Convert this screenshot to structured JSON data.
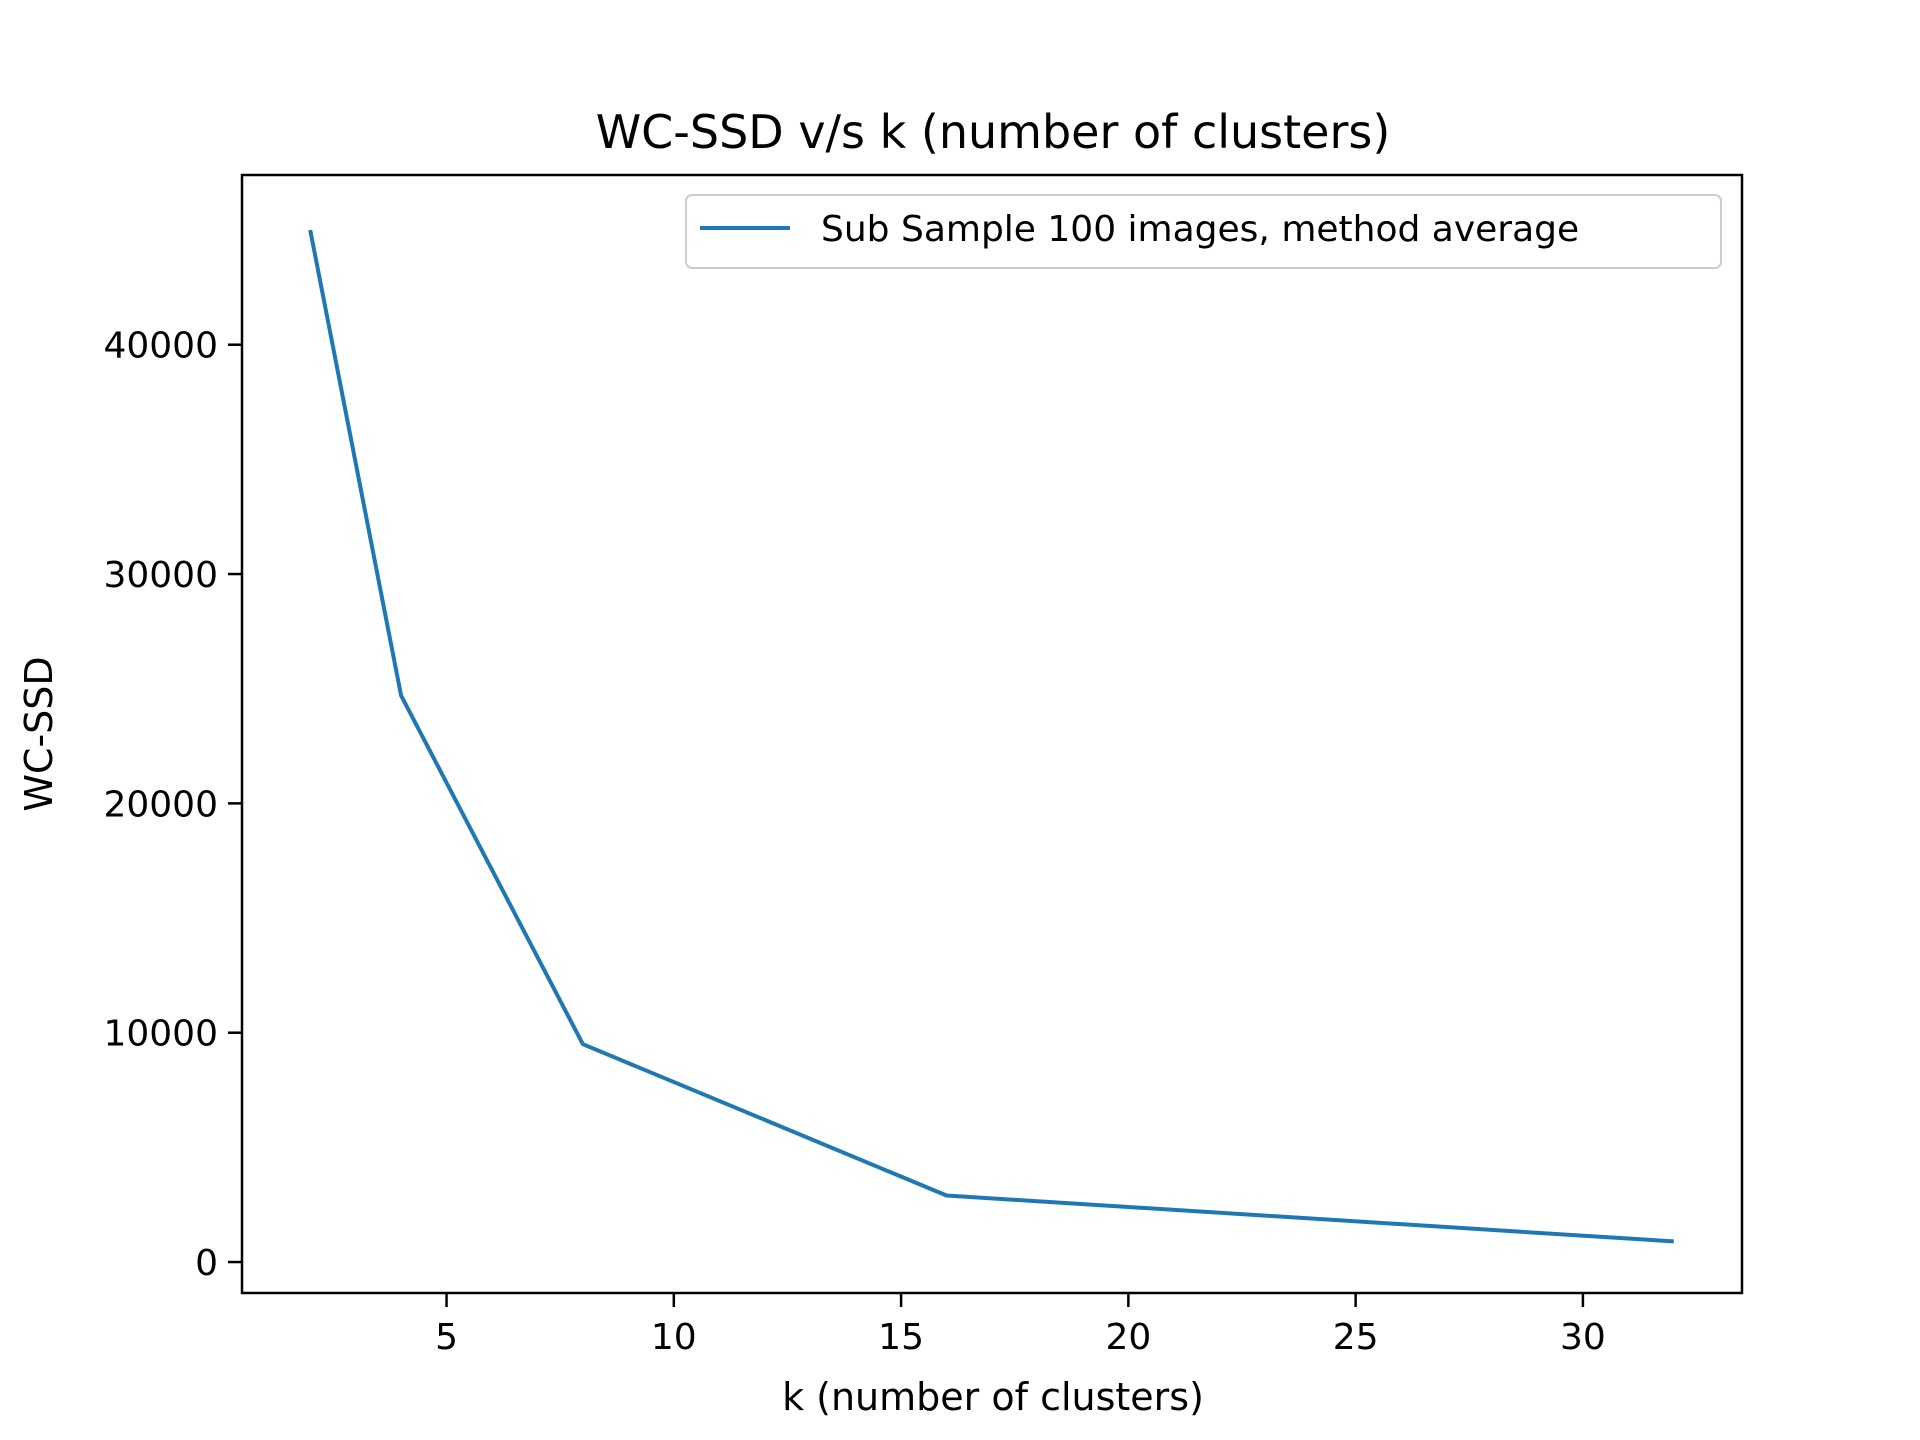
{
  "chart_data": {
    "type": "line",
    "title": "WC-SSD v/s k (number of clusters)",
    "xlabel": "k (number of clusters)",
    "ylabel": "WC-SSD",
    "xlim": [
      0.5,
      33.5
    ],
    "ylim": [
      -1350,
      47400
    ],
    "xticks": [
      5,
      10,
      15,
      20,
      25,
      30
    ],
    "xtick_labels": [
      "5",
      "10",
      "15",
      "20",
      "25",
      "30"
    ],
    "yticks": [
      0,
      10000,
      20000,
      30000,
      40000
    ],
    "ytick_labels": [
      "0",
      "10000",
      "20000",
      "30000",
      "40000"
    ],
    "grid": false,
    "legend_position": "top-right",
    "series": [
      {
        "name": "Sub Sample 100 images, method average",
        "color": "#1f77b4",
        "x": [
          2,
          4,
          8,
          16,
          32
        ],
        "y": [
          45000,
          24700,
          9500,
          2900,
          900
        ]
      }
    ]
  }
}
